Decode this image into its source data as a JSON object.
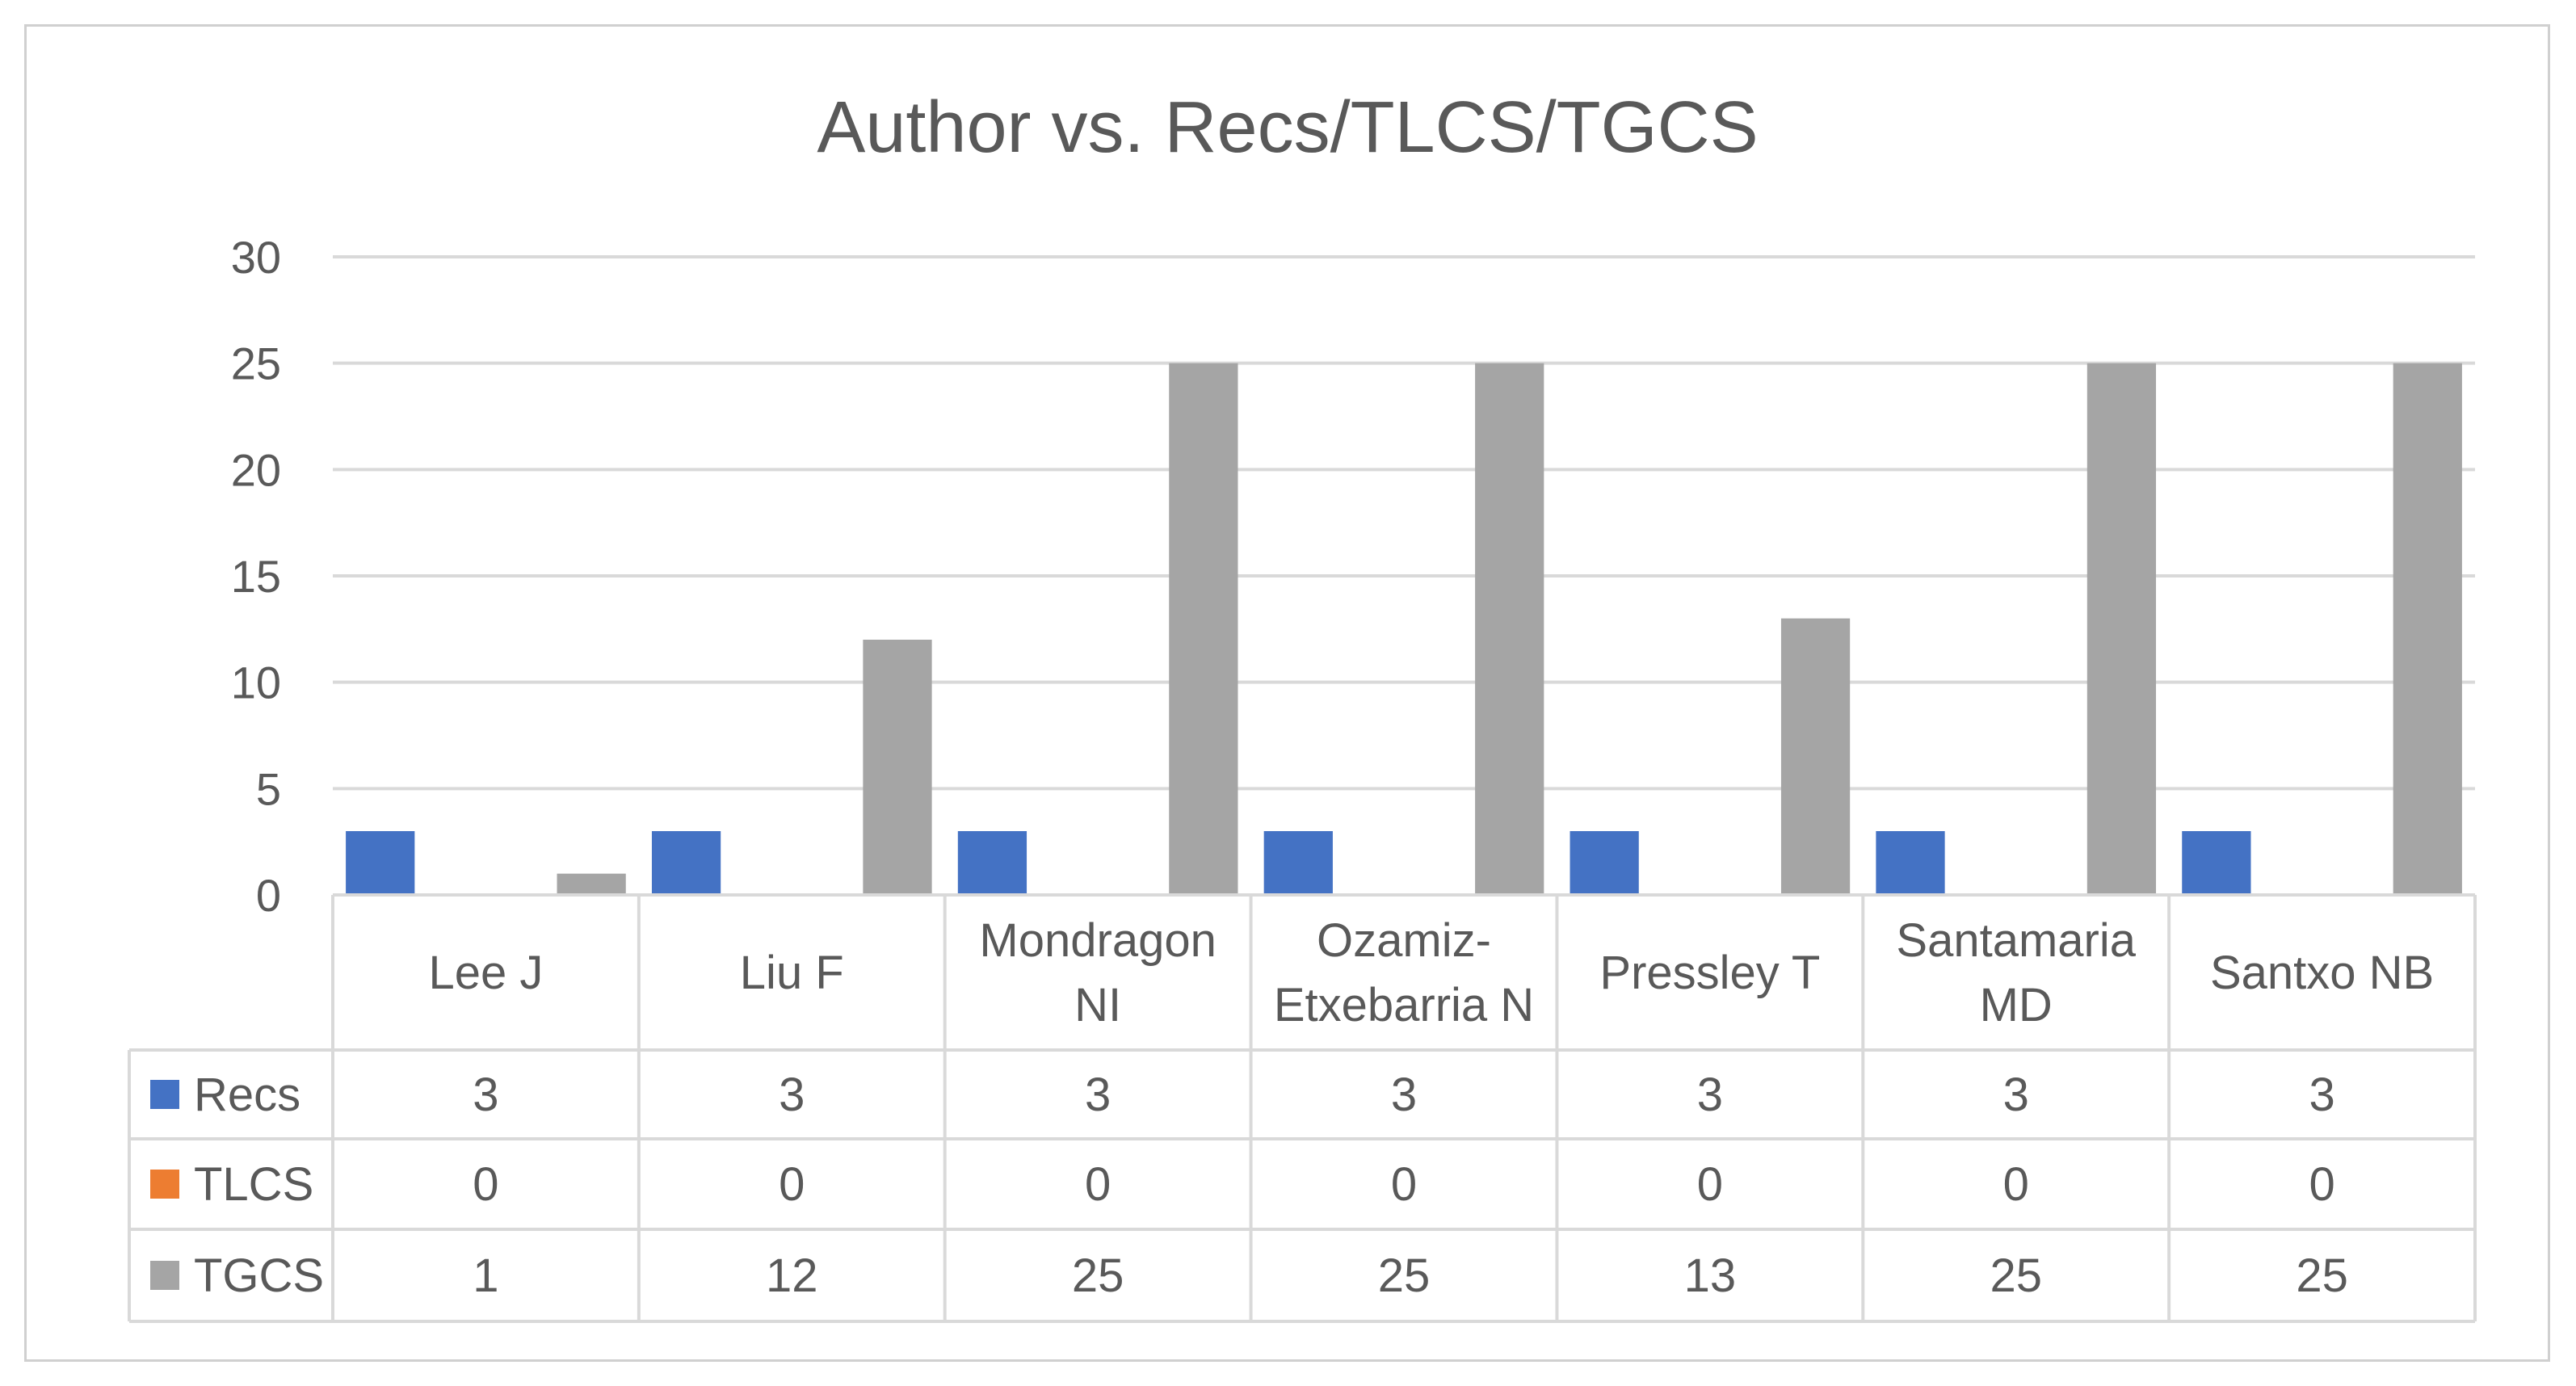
{
  "chart_data": {
    "type": "bar",
    "title": "Author vs. Recs/TLCS/TGCS",
    "categories": [
      [
        "Lee J"
      ],
      [
        "Liu F"
      ],
      [
        "Mondragon",
        "NI"
      ],
      [
        "Ozamiz-",
        "Etxebarria N"
      ],
      [
        "Pressley T"
      ],
      [
        "Santamaria",
        "MD"
      ],
      [
        "Santxo NB"
      ]
    ],
    "series": [
      {
        "name": "Recs",
        "color": "#4472C4",
        "values": [
          3,
          3,
          3,
          3,
          3,
          3,
          3
        ]
      },
      {
        "name": "TLCS",
        "color": "#ED7D31",
        "values": [
          0,
          0,
          0,
          0,
          0,
          0,
          0
        ]
      },
      {
        "name": "TGCS",
        "color": "#A5A5A5",
        "values": [
          1,
          12,
          25,
          25,
          13,
          25,
          25
        ]
      }
    ],
    "yticks": [
      "0",
      "5",
      "10",
      "15",
      "20",
      "25",
      "30"
    ],
    "ylim": [
      0,
      30
    ],
    "grid": true,
    "legend": "data-table",
    "data_table": true
  }
}
